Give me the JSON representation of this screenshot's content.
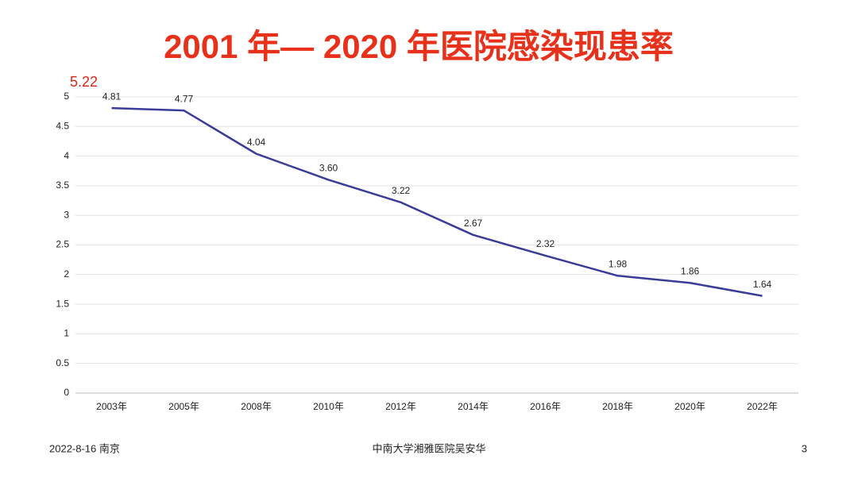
{
  "chart_data": {
    "type": "line",
    "title": "2001 年— 2020 年医院感染现患率",
    "annotation": "5.22",
    "categories": [
      "2003年",
      "2005年",
      "2008年",
      "2010年",
      "2012年",
      "2014年",
      "2016年",
      "2018年",
      "2020年",
      "2022年"
    ],
    "values": [
      4.81,
      4.77,
      4.04,
      3.6,
      3.22,
      2.67,
      2.32,
      1.98,
      1.86,
      1.64
    ],
    "value_labels": [
      "4.81",
      "4.77",
      "4.04",
      "3.60",
      "3.22",
      "2.67",
      "2.32",
      "1.98",
      "1.86",
      "1.64"
    ],
    "color": "#3b3b98",
    "ylim": [
      0,
      5
    ],
    "yticks": [
      0,
      0.5,
      1,
      1.5,
      2,
      2.5,
      3,
      3.5,
      4,
      4.5,
      5
    ],
    "grid": true
  },
  "footer": {
    "date": "2022-8-16 南京",
    "organization": "中南大学湘雅医院吴安华",
    "page": "3"
  }
}
